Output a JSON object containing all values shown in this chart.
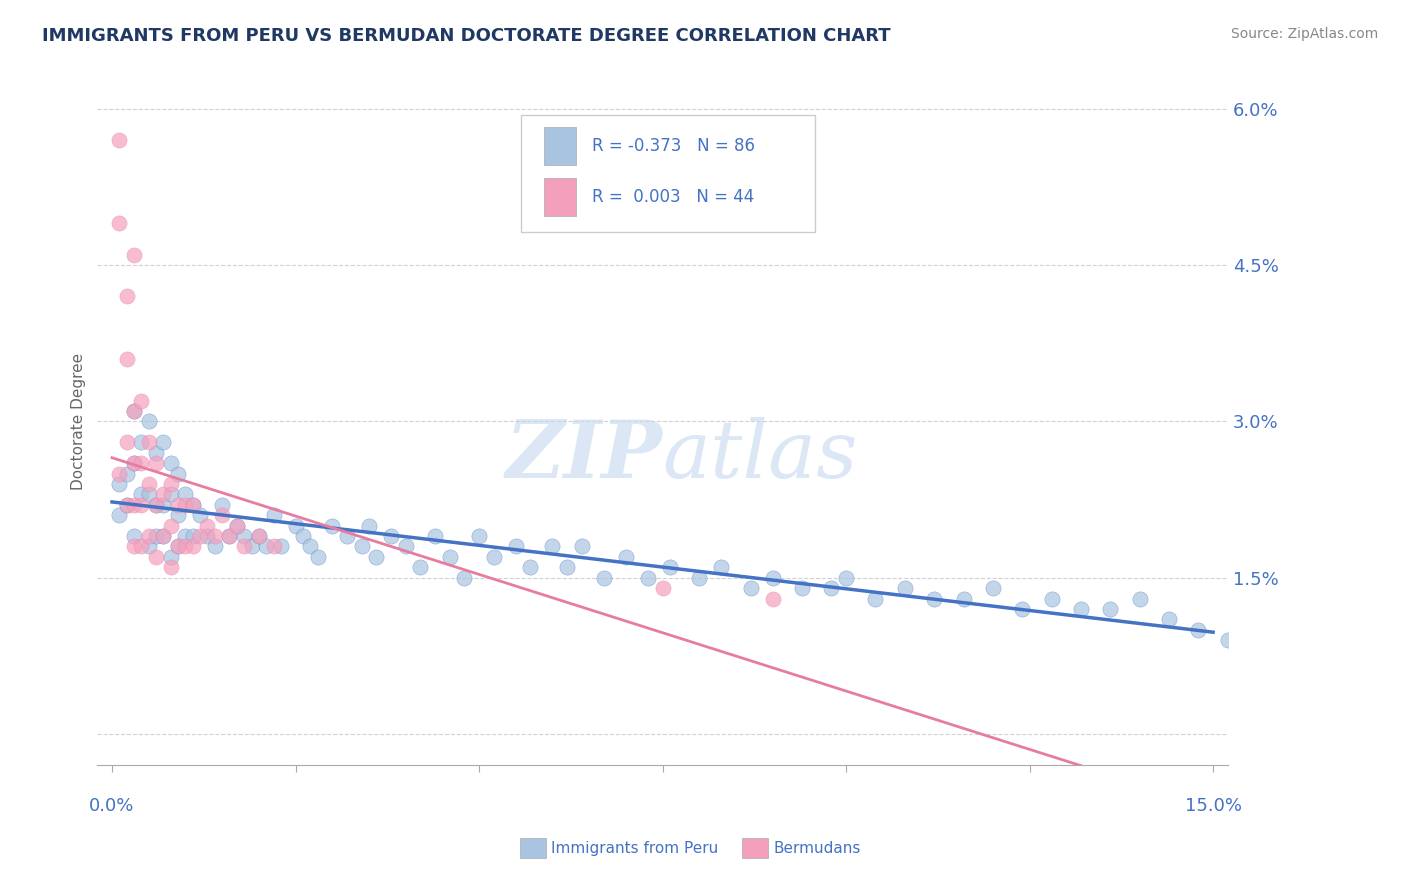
{
  "title": "IMMIGRANTS FROM PERU VS BERMUDAN DOCTORATE DEGREE CORRELATION CHART",
  "source": "Source: ZipAtlas.com",
  "ylabel": "Doctorate Degree",
  "series1_color": "#a8c4e0",
  "series2_color": "#f4a0bc",
  "line1_color": "#4472c4",
  "line2_color": "#e87ca0",
  "background_color": "#ffffff",
  "grid_color": "#cccccc",
  "title_color": "#1f3864",
  "axis_label_color": "#4472c4",
  "watermark": "ZIPatlas",
  "xlim": [
    0.0,
    0.15
  ],
  "ylim": [
    0.0,
    0.06
  ],
  "yticks": [
    0.0,
    0.015,
    0.03,
    0.045,
    0.06
  ],
  "ytick_labels": [
    "",
    "1.5%",
    "3.0%",
    "4.5%",
    "6.0%"
  ],
  "peru_x": [
    0.001,
    0.001,
    0.002,
    0.002,
    0.003,
    0.003,
    0.003,
    0.004,
    0.004,
    0.005,
    0.005,
    0.005,
    0.006,
    0.006,
    0.006,
    0.007,
    0.007,
    0.007,
    0.008,
    0.008,
    0.008,
    0.009,
    0.009,
    0.009,
    0.01,
    0.01,
    0.011,
    0.011,
    0.012,
    0.013,
    0.014,
    0.015,
    0.016,
    0.017,
    0.018,
    0.019,
    0.02,
    0.021,
    0.022,
    0.023,
    0.025,
    0.026,
    0.027,
    0.028,
    0.03,
    0.032,
    0.034,
    0.035,
    0.036,
    0.038,
    0.04,
    0.042,
    0.044,
    0.046,
    0.048,
    0.05,
    0.052,
    0.055,
    0.057,
    0.06,
    0.062,
    0.064,
    0.067,
    0.07,
    0.073,
    0.076,
    0.08,
    0.083,
    0.087,
    0.09,
    0.094,
    0.098,
    0.1,
    0.104,
    0.108,
    0.112,
    0.116,
    0.12,
    0.124,
    0.128,
    0.132,
    0.136,
    0.14,
    0.144,
    0.148,
    0.152
  ],
  "peru_y": [
    0.024,
    0.021,
    0.025,
    0.022,
    0.031,
    0.026,
    0.019,
    0.028,
    0.023,
    0.03,
    0.023,
    0.018,
    0.027,
    0.022,
    0.019,
    0.028,
    0.022,
    0.019,
    0.026,
    0.023,
    0.017,
    0.025,
    0.021,
    0.018,
    0.023,
    0.019,
    0.022,
    0.019,
    0.021,
    0.019,
    0.018,
    0.022,
    0.019,
    0.02,
    0.019,
    0.018,
    0.019,
    0.018,
    0.021,
    0.018,
    0.02,
    0.019,
    0.018,
    0.017,
    0.02,
    0.019,
    0.018,
    0.02,
    0.017,
    0.019,
    0.018,
    0.016,
    0.019,
    0.017,
    0.015,
    0.019,
    0.017,
    0.018,
    0.016,
    0.018,
    0.016,
    0.018,
    0.015,
    0.017,
    0.015,
    0.016,
    0.015,
    0.016,
    0.014,
    0.015,
    0.014,
    0.014,
    0.015,
    0.013,
    0.014,
    0.013,
    0.013,
    0.014,
    0.012,
    0.013,
    0.012,
    0.012,
    0.013,
    0.011,
    0.01,
    0.009
  ],
  "bermuda_x": [
    0.001,
    0.001,
    0.001,
    0.002,
    0.002,
    0.002,
    0.002,
    0.003,
    0.003,
    0.003,
    0.003,
    0.003,
    0.004,
    0.004,
    0.004,
    0.004,
    0.005,
    0.005,
    0.005,
    0.006,
    0.006,
    0.006,
    0.007,
    0.007,
    0.008,
    0.008,
    0.008,
    0.009,
    0.009,
    0.01,
    0.01,
    0.011,
    0.011,
    0.012,
    0.013,
    0.014,
    0.015,
    0.016,
    0.017,
    0.018,
    0.02,
    0.022,
    0.075,
    0.09
  ],
  "bermuda_y": [
    0.057,
    0.049,
    0.025,
    0.042,
    0.036,
    0.028,
    0.022,
    0.046,
    0.031,
    0.026,
    0.022,
    0.018,
    0.032,
    0.026,
    0.022,
    0.018,
    0.028,
    0.024,
    0.019,
    0.026,
    0.022,
    0.017,
    0.023,
    0.019,
    0.024,
    0.02,
    0.016,
    0.022,
    0.018,
    0.022,
    0.018,
    0.022,
    0.018,
    0.019,
    0.02,
    0.019,
    0.021,
    0.019,
    0.02,
    0.018,
    0.019,
    0.018,
    0.014,
    0.013
  ]
}
